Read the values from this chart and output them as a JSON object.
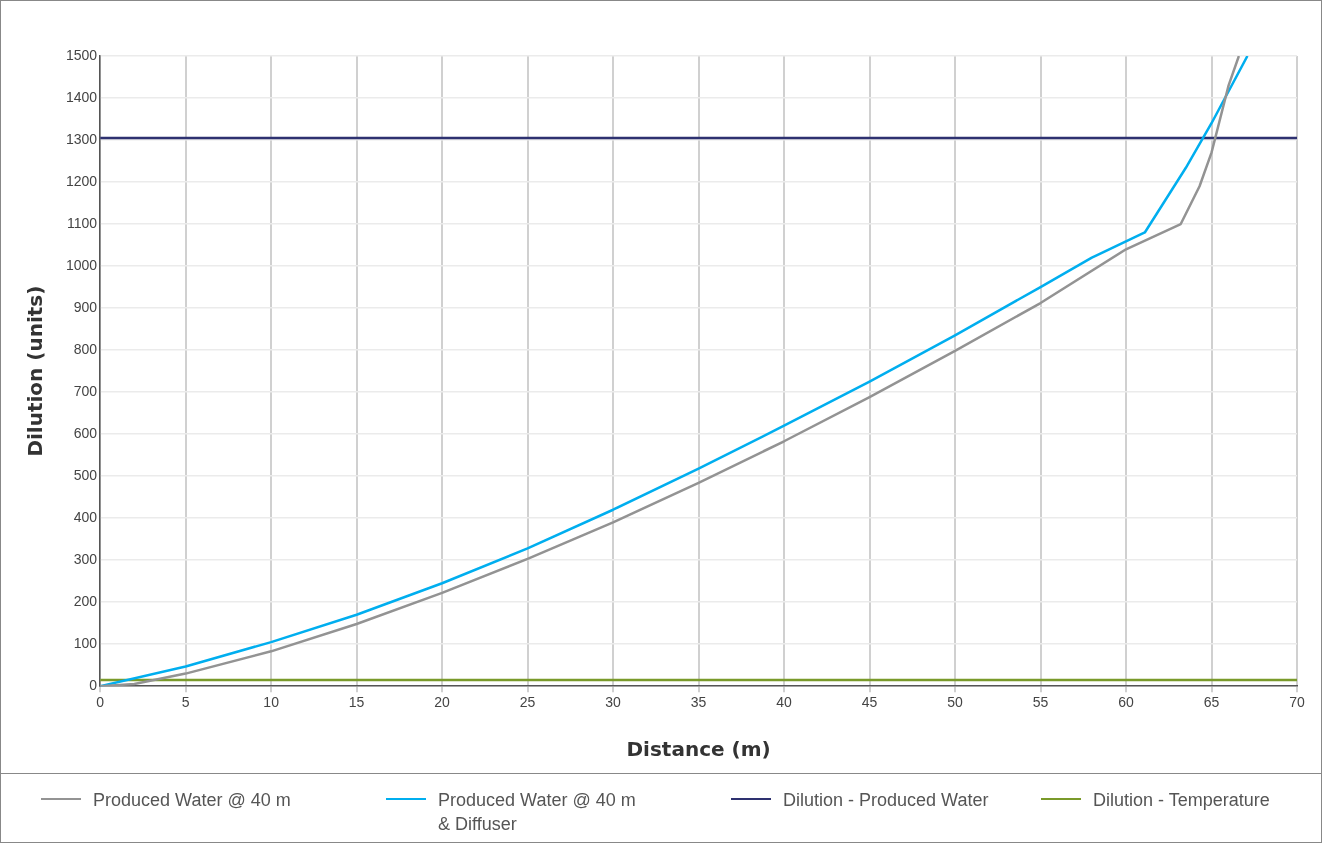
{
  "chart_data": {
    "type": "line",
    "xlabel": "Distance (m)",
    "ylabel": "Dilution (units)",
    "xlim": [
      0,
      70
    ],
    "xticks": [
      0,
      5,
      10,
      15,
      20,
      25,
      30,
      35,
      40,
      45,
      50,
      55,
      60,
      65,
      70
    ],
    "ylim": [
      0,
      1500
    ],
    "yticks": [
      0,
      100,
      200,
      300,
      400,
      500,
      600,
      700,
      800,
      900,
      1000,
      1100,
      1200,
      1300,
      1400,
      1500
    ],
    "grid": true,
    "legend": "bottom",
    "marker": "none",
    "line_style": "solid",
    "series": [
      {
        "name": "Produced Water @ 40 m",
        "color": "#939393",
        "x": [
          0,
          2,
          5,
          10,
          15,
          20,
          25,
          30,
          35,
          40,
          45,
          50,
          55,
          60,
          63.2,
          64.3,
          65,
          65.5,
          66,
          66.6
        ],
        "values": [
          0,
          5,
          30,
          83,
          148,
          222,
          303,
          390,
          484,
          583,
          688,
          798,
          912,
          1040,
          1100,
          1190,
          1270,
          1350,
          1430,
          1500
        ]
      },
      {
        "name": "Produced Water @ 40 m\n& Diffuser",
        "color": "#00aeef",
        "x": [
          0,
          5,
          10,
          15,
          20,
          25,
          30,
          35,
          40,
          45,
          50,
          55,
          58,
          61.1,
          63.5,
          65,
          67.1
        ],
        "values": [
          0,
          47,
          105,
          170,
          245,
          328,
          420,
          518,
          620,
          725,
          835,
          950,
          1020,
          1080,
          1234,
          1340,
          1500
        ]
      },
      {
        "name": "Dilution - Produced Water",
        "color": "#2e3170",
        "x": [
          0,
          70
        ],
        "values": [
          1305,
          1305
        ]
      },
      {
        "name": "Dilution - Temperature",
        "color": "#7a9a2a",
        "x": [
          0,
          70
        ],
        "values": [
          15,
          15
        ]
      }
    ]
  }
}
